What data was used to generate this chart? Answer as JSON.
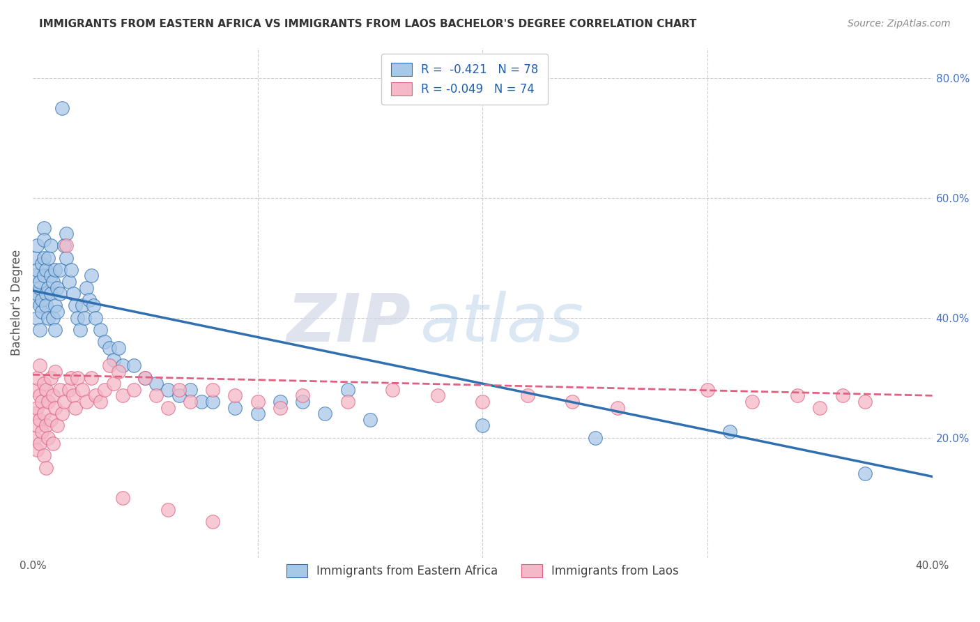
{
  "title": "IMMIGRANTS FROM EASTERN AFRICA VS IMMIGRANTS FROM LAOS BACHELOR'S DEGREE CORRELATION CHART",
  "source": "Source: ZipAtlas.com",
  "ylabel": "Bachelor's Degree",
  "xlim": [
    0.0,
    0.4
  ],
  "ylim": [
    0.0,
    0.85
  ],
  "yticks": [
    0.2,
    0.4,
    0.6,
    0.8
  ],
  "ytick_labels": [
    "20.0%",
    "40.0%",
    "60.0%",
    "80.0%"
  ],
  "color_blue": "#a8c8e8",
  "color_pink": "#f4b8c8",
  "color_blue_dark": "#3070b0",
  "color_pink_dark": "#e06080",
  "watermark_zip": "ZIP",
  "watermark_atlas": "atlas",
  "background_color": "#ffffff",
  "grid_color": "#cccccc",
  "legend_label1": "Immigrants from Eastern Africa",
  "legend_label2": "Immigrants from Laos",
  "blue_trend_x": [
    0.0,
    0.4
  ],
  "blue_trend_y": [
    0.445,
    0.135
  ],
  "pink_trend_x": [
    0.0,
    0.4
  ],
  "pink_trend_y": [
    0.305,
    0.27
  ],
  "eastern_africa_x": [
    0.001,
    0.001,
    0.001,
    0.002,
    0.002,
    0.002,
    0.002,
    0.003,
    0.003,
    0.003,
    0.003,
    0.004,
    0.004,
    0.004,
    0.005,
    0.005,
    0.005,
    0.005,
    0.006,
    0.006,
    0.006,
    0.007,
    0.007,
    0.007,
    0.008,
    0.008,
    0.008,
    0.009,
    0.009,
    0.01,
    0.01,
    0.01,
    0.011,
    0.011,
    0.012,
    0.012,
    0.013,
    0.014,
    0.015,
    0.015,
    0.016,
    0.017,
    0.018,
    0.019,
    0.02,
    0.021,
    0.022,
    0.023,
    0.024,
    0.025,
    0.026,
    0.027,
    0.028,
    0.03,
    0.032,
    0.034,
    0.036,
    0.038,
    0.04,
    0.045,
    0.05,
    0.055,
    0.06,
    0.065,
    0.07,
    0.075,
    0.08,
    0.09,
    0.1,
    0.11,
    0.12,
    0.13,
    0.14,
    0.15,
    0.2,
    0.25,
    0.31,
    0.37
  ],
  "eastern_africa_y": [
    0.43,
    0.47,
    0.5,
    0.4,
    0.44,
    0.48,
    0.52,
    0.42,
    0.45,
    0.38,
    0.46,
    0.41,
    0.49,
    0.43,
    0.55,
    0.5,
    0.47,
    0.53,
    0.44,
    0.48,
    0.42,
    0.5,
    0.45,
    0.4,
    0.47,
    0.52,
    0.44,
    0.4,
    0.46,
    0.48,
    0.42,
    0.38,
    0.45,
    0.41,
    0.44,
    0.48,
    0.75,
    0.52,
    0.54,
    0.5,
    0.46,
    0.48,
    0.44,
    0.42,
    0.4,
    0.38,
    0.42,
    0.4,
    0.45,
    0.43,
    0.47,
    0.42,
    0.4,
    0.38,
    0.36,
    0.35,
    0.33,
    0.35,
    0.32,
    0.32,
    0.3,
    0.29,
    0.28,
    0.27,
    0.28,
    0.26,
    0.26,
    0.25,
    0.24,
    0.26,
    0.26,
    0.24,
    0.28,
    0.23,
    0.22,
    0.2,
    0.21,
    0.14
  ],
  "laos_x": [
    0.001,
    0.001,
    0.001,
    0.002,
    0.002,
    0.002,
    0.002,
    0.003,
    0.003,
    0.003,
    0.003,
    0.004,
    0.004,
    0.005,
    0.005,
    0.005,
    0.006,
    0.006,
    0.006,
    0.007,
    0.007,
    0.008,
    0.008,
    0.009,
    0.009,
    0.01,
    0.01,
    0.011,
    0.012,
    0.013,
    0.014,
    0.015,
    0.016,
    0.017,
    0.018,
    0.019,
    0.02,
    0.022,
    0.024,
    0.026,
    0.028,
    0.03,
    0.032,
    0.034,
    0.036,
    0.038,
    0.04,
    0.045,
    0.05,
    0.055,
    0.06,
    0.065,
    0.07,
    0.08,
    0.09,
    0.1,
    0.11,
    0.12,
    0.14,
    0.16,
    0.18,
    0.2,
    0.22,
    0.24,
    0.26,
    0.3,
    0.32,
    0.34,
    0.35,
    0.36,
    0.37,
    0.04,
    0.06,
    0.08
  ],
  "laos_y": [
    0.24,
    0.28,
    0.2,
    0.25,
    0.3,
    0.18,
    0.22,
    0.27,
    0.23,
    0.19,
    0.32,
    0.26,
    0.21,
    0.29,
    0.24,
    0.17,
    0.28,
    0.22,
    0.15,
    0.26,
    0.2,
    0.3,
    0.23,
    0.27,
    0.19,
    0.25,
    0.31,
    0.22,
    0.28,
    0.24,
    0.26,
    0.52,
    0.28,
    0.3,
    0.27,
    0.25,
    0.3,
    0.28,
    0.26,
    0.3,
    0.27,
    0.26,
    0.28,
    0.32,
    0.29,
    0.31,
    0.27,
    0.28,
    0.3,
    0.27,
    0.25,
    0.28,
    0.26,
    0.28,
    0.27,
    0.26,
    0.25,
    0.27,
    0.26,
    0.28,
    0.27,
    0.26,
    0.27,
    0.26,
    0.25,
    0.28,
    0.26,
    0.27,
    0.25,
    0.27,
    0.26,
    0.1,
    0.08,
    0.06
  ]
}
